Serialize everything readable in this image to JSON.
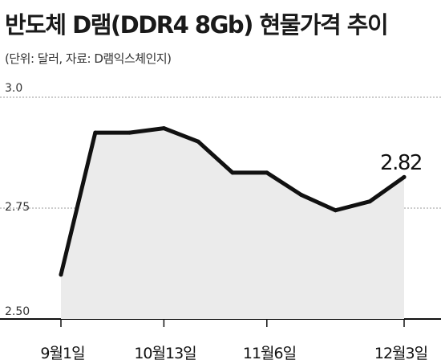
{
  "chart_data": {
    "type": "area",
    "title": "반도체 D램(DDR4 8Gb) 현물가격 추이",
    "subtitle": "(단위: 달러, 자료: D램익스체인지)",
    "yticks": [
      "3.0",
      "2.75",
      "2.50"
    ],
    "ylim": [
      2.5,
      3.0
    ],
    "grid": true,
    "x_labels": [
      "9월1일",
      "10월13일",
      "11월6일",
      "12월3일"
    ],
    "series": [
      {
        "values": [
          2.6,
          2.92,
          2.92,
          2.93,
          2.9,
          2.83,
          2.83,
          2.78,
          2.745,
          2.765,
          2.82
        ]
      }
    ],
    "data_label": "2.82",
    "colors": {
      "line": "#111111",
      "fill": "#ebebeb",
      "grid": "#9a9a9a"
    }
  }
}
